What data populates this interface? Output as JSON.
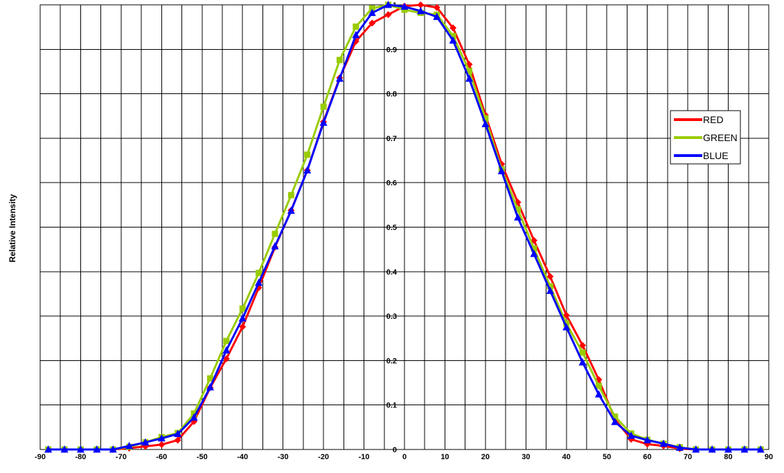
{
  "chart_data": {
    "type": "line",
    "title": "",
    "xlabel": "",
    "ylabel": "Relative Intensity",
    "xlim": [
      -90,
      90
    ],
    "ylim": [
      0,
      1
    ],
    "x_ticks": [
      -90,
      -80,
      -70,
      -60,
      -50,
      -40,
      -30,
      -20,
      -10,
      0,
      10,
      20,
      30,
      40,
      50,
      60,
      70,
      80,
      90
    ],
    "y_ticks": [
      0,
      0.1,
      0.2,
      0.3,
      0.4,
      0.5,
      0.6,
      0.7,
      0.8,
      0.9,
      1
    ],
    "y_tick_labels": [
      "0",
      "0.1",
      "0.2",
      "0.3",
      "0.4",
      "0.5",
      "0.6",
      "0.7",
      "0.8",
      "0.9",
      "1"
    ],
    "grid": true,
    "legend_position": "right",
    "x": [
      -88,
      -84,
      -80,
      -76,
      -72,
      -68,
      -64,
      -60,
      -56,
      -52,
      -48,
      -44,
      -40,
      -36,
      -32,
      -28,
      -24,
      -20,
      -16,
      -12,
      -8,
      -4,
      0,
      4,
      8,
      12,
      16,
      20,
      24,
      28,
      32,
      36,
      40,
      44,
      48,
      52,
      56,
      60,
      64,
      68,
      72,
      76,
      80,
      84,
      88
    ],
    "series": [
      {
        "name": "RED",
        "color": "#ff0000",
        "marker": "diamond",
        "values": [
          0,
          0,
          0,
          0,
          0,
          0.003,
          0.007,
          0.011,
          0.021,
          0.063,
          0.139,
          0.204,
          0.276,
          0.364,
          0.455,
          0.538,
          0.628,
          0.737,
          0.836,
          0.918,
          0.959,
          0.978,
          0.997,
          1.0,
          0.994,
          0.948,
          0.866,
          0.752,
          0.642,
          0.556,
          0.47,
          0.389,
          0.302,
          0.234,
          0.157,
          0.068,
          0.023,
          0.012,
          0.008,
          0.002,
          0,
          0,
          0,
          0,
          0
        ]
      },
      {
        "name": "GREEN",
        "color": "#99cc00",
        "marker": "square",
        "values": [
          0,
          0,
          0,
          0,
          0,
          0.006,
          0.016,
          0.028,
          0.037,
          0.081,
          0.16,
          0.244,
          0.317,
          0.397,
          0.485,
          0.572,
          0.663,
          0.771,
          0.876,
          0.951,
          0.992,
          1.0,
          0.989,
          0.982,
          0.978,
          0.93,
          0.851,
          0.745,
          0.63,
          0.54,
          0.452,
          0.367,
          0.283,
          0.218,
          0.143,
          0.074,
          0.036,
          0.022,
          0.013,
          0.005,
          0,
          0,
          0,
          0,
          0
        ]
      },
      {
        "name": "BLUE",
        "color": "#0000ff",
        "marker": "triangle",
        "values": [
          0,
          0,
          0,
          0,
          0,
          0.008,
          0.016,
          0.025,
          0.035,
          0.072,
          0.14,
          0.223,
          0.295,
          0.375,
          0.457,
          0.537,
          0.628,
          0.735,
          0.834,
          0.932,
          0.982,
          1.0,
          0.996,
          0.986,
          0.973,
          0.92,
          0.834,
          0.732,
          0.626,
          0.522,
          0.44,
          0.357,
          0.275,
          0.196,
          0.124,
          0.062,
          0.031,
          0.021,
          0.013,
          0.004,
          0,
          0,
          0,
          0,
          0
        ]
      }
    ]
  }
}
